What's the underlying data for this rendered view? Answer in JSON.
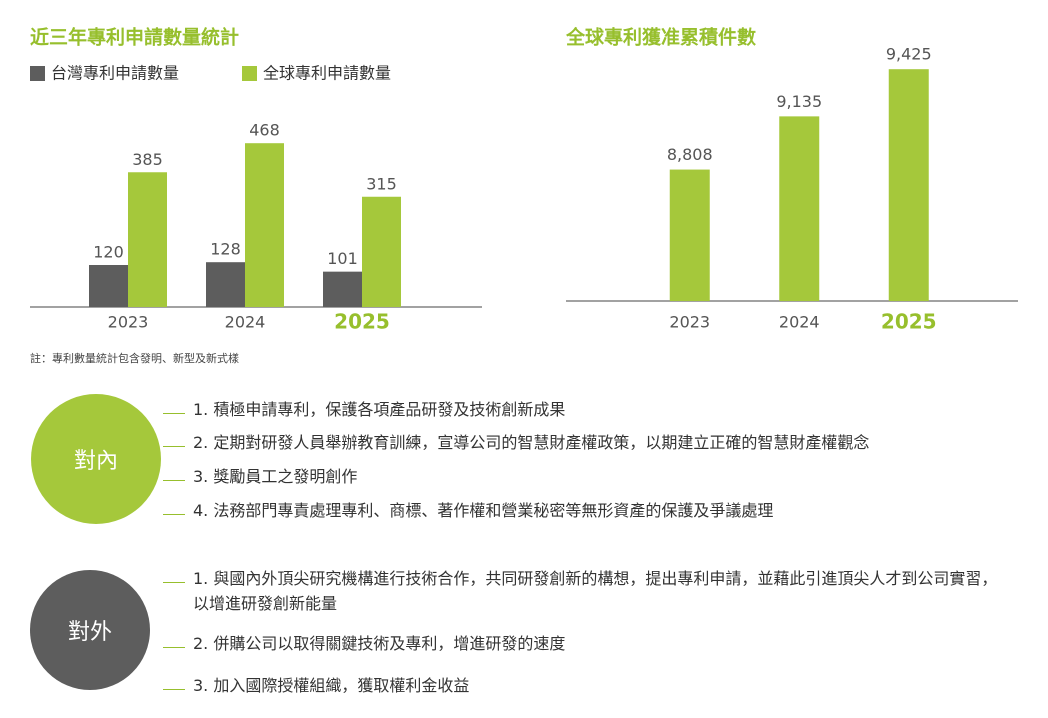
{
  "chart_data": [
    {
      "type": "bar",
      "title": "近三年專利申請數量統計",
      "categories": [
        "2023",
        "2024",
        "2025"
      ],
      "series": [
        {
          "name": "台灣專利申請數量",
          "color": "#5d5d5d",
          "values": [
            120,
            128,
            101
          ]
        },
        {
          "name": "全球專利申請數量",
          "color": "#a5c83b",
          "values": [
            385,
            468,
            315
          ]
        }
      ],
      "ylim": [
        0,
        500
      ]
    },
    {
      "type": "bar",
      "title": "全球專利獲准累積件數",
      "categories": [
        "2023",
        "2024",
        "2025"
      ],
      "color": "#a5c83b",
      "values": [
        8808,
        9135,
        9425
      ],
      "value_labels": [
        "8,808",
        "9,135",
        "9,425"
      ],
      "ylim": [
        8000,
        9500
      ]
    }
  ],
  "note": "註：專利數量統計包含發明、新型及新式樣",
  "sections": [
    {
      "label": "對內",
      "items": [
        "1.  積極申請專利，保護各項產品研發及技術創新成果",
        "2.  定期對研發人員舉辦教育訓練，宣導公司的智慧財產權政策，以期建立正確的智慧財產權觀念",
        "3.  獎勵員工之發明創作",
        "4.  法務部門專責處理專利、商標、著作權和營業秘密等無形資產的保護及爭議處理"
      ]
    },
    {
      "label": "對外",
      "items": [
        "1.  與國內外頂尖研究機構進行技術合作，共同研發創新的構想，提出專利申請，並藉此引進頂尖人才到公司實習，以增進研發創新能量",
        "2.  併購公司以取得關鍵技術及專利，增進研發的速度",
        "3.  加入國際授權組織，獲取權利金收益"
      ]
    }
  ]
}
